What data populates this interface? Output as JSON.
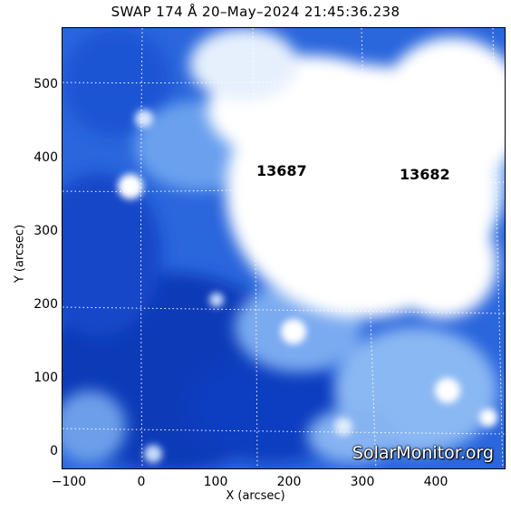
{
  "title": "SWAP 174 Å 20–May–2024 21:45:36.238",
  "axes": {
    "xlabel": "X (arcsec)",
    "ylabel": "Y (arcsec)",
    "x_ticks": [
      "−100",
      "0",
      "100",
      "200",
      "300",
      "400"
    ],
    "y_ticks": [
      "0",
      "100",
      "200",
      "300",
      "400",
      "500"
    ],
    "xlim": [
      -115,
      490
    ],
    "ylim": [
      -25,
      575
    ]
  },
  "regions": [
    {
      "label": "13687"
    },
    {
      "label": "13682"
    }
  ],
  "watermark": "SolarMonitor.org",
  "colors": {
    "dark_blue": "#0a3fc4",
    "mid_blue": "#2f72e6",
    "light_blue": "#9cc4f5",
    "bright": "#ffffff",
    "grid": "#ffffff"
  }
}
